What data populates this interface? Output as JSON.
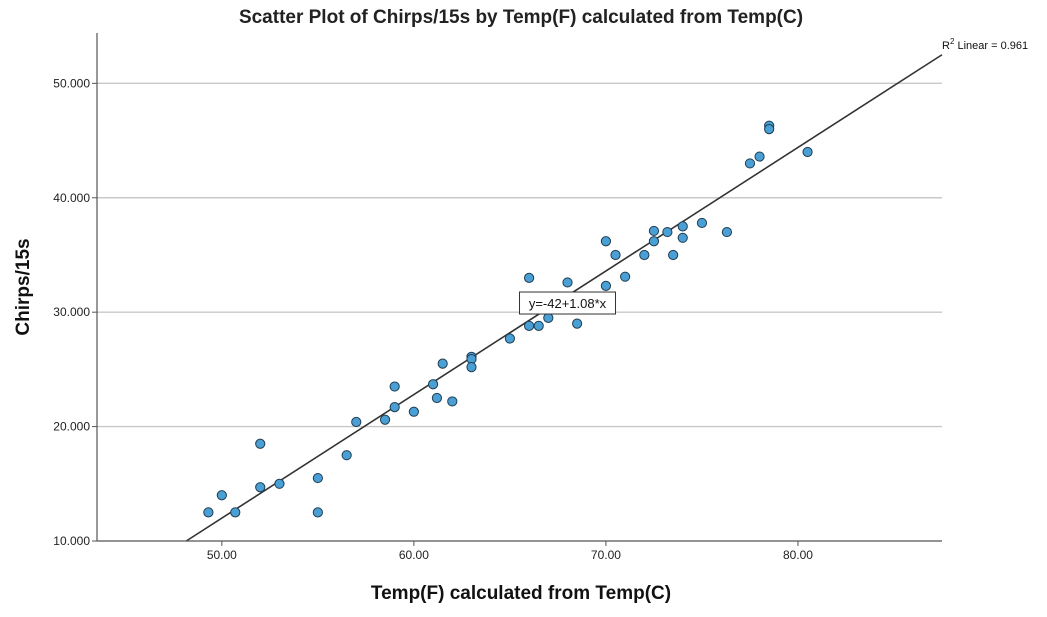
{
  "chart_data": {
    "type": "scatter",
    "title": "Scatter Plot of Chirps/15s by Temp(F) calculated from Temp(C)",
    "xlabel": "Temp(F) calculated from Temp(C)",
    "ylabel": "Chirps/15s",
    "xlim": [
      43.5,
      87.5
    ],
    "ylim": [
      10,
      54.4
    ],
    "x_ticks": [
      50,
      60,
      70,
      80
    ],
    "x_tick_labels": [
      "50.00",
      "60.00",
      "70.00",
      "80.00"
    ],
    "y_ticks": [
      10,
      20,
      30,
      40,
      50
    ],
    "y_tick_labels": [
      "10.000",
      "20.000",
      "30.000",
      "40.000",
      "50.000"
    ],
    "grid": "horizontal",
    "marker_color": "#4a9fd4",
    "marker_edge": "#1f3d52",
    "line_color": "#333333",
    "fit": {
      "intercept": -42,
      "slope": 1.08,
      "equation_label": "y=-42+1.08*x",
      "equation_x": 68,
      "equation_y": 30.8,
      "r2_label_prefix": "R",
      "r2_label_sup": "2",
      "r2_label_text": " Linear = 0.961"
    },
    "points": [
      {
        "x": 49.3,
        "y": 12.5
      },
      {
        "x": 50.0,
        "y": 14.0
      },
      {
        "x": 50.7,
        "y": 12.5
      },
      {
        "x": 52.0,
        "y": 14.7
      },
      {
        "x": 52.0,
        "y": 18.5
      },
      {
        "x": 53.0,
        "y": 15.0
      },
      {
        "x": 55.0,
        "y": 15.5
      },
      {
        "x": 55.0,
        "y": 12.5
      },
      {
        "x": 56.5,
        "y": 17.5
      },
      {
        "x": 57.0,
        "y": 20.4
      },
      {
        "x": 58.5,
        "y": 20.6
      },
      {
        "x": 59.0,
        "y": 21.7
      },
      {
        "x": 59.0,
        "y": 23.5
      },
      {
        "x": 60.0,
        "y": 21.3
      },
      {
        "x": 61.0,
        "y": 23.7
      },
      {
        "x": 61.2,
        "y": 22.5
      },
      {
        "x": 61.5,
        "y": 25.5
      },
      {
        "x": 62.0,
        "y": 22.2
      },
      {
        "x": 63.0,
        "y": 26.1
      },
      {
        "x": 63.0,
        "y": 25.9
      },
      {
        "x": 63.0,
        "y": 25.2
      },
      {
        "x": 65.0,
        "y": 27.7
      },
      {
        "x": 66.0,
        "y": 28.8
      },
      {
        "x": 66.0,
        "y": 33.0
      },
      {
        "x": 66.5,
        "y": 28.8
      },
      {
        "x": 67.0,
        "y": 29.5
      },
      {
        "x": 68.0,
        "y": 32.6
      },
      {
        "x": 68.5,
        "y": 29.0
      },
      {
        "x": 70.0,
        "y": 32.3
      },
      {
        "x": 70.0,
        "y": 36.2
      },
      {
        "x": 70.5,
        "y": 35.0
      },
      {
        "x": 71.0,
        "y": 33.1
      },
      {
        "x": 72.0,
        "y": 35.0
      },
      {
        "x": 72.5,
        "y": 36.2
      },
      {
        "x": 72.5,
        "y": 37.1
      },
      {
        "x": 73.2,
        "y": 37.0
      },
      {
        "x": 73.5,
        "y": 35.0
      },
      {
        "x": 74.0,
        "y": 37.5
      },
      {
        "x": 74.0,
        "y": 36.5
      },
      {
        "x": 75.0,
        "y": 37.8
      },
      {
        "x": 76.3,
        "y": 37.0
      },
      {
        "x": 77.5,
        "y": 43.0
      },
      {
        "x": 78.0,
        "y": 43.6
      },
      {
        "x": 78.5,
        "y": 46.3
      },
      {
        "x": 78.5,
        "y": 46.0
      },
      {
        "x": 80.5,
        "y": 44.0
      }
    ]
  }
}
